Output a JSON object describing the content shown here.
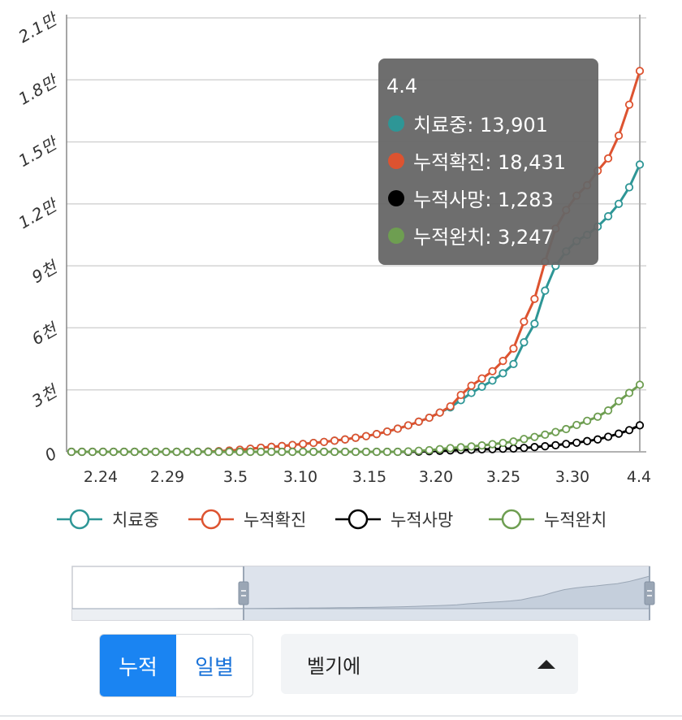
{
  "chart_data": {
    "type": "line",
    "x_tick_labels": [
      "2.24",
      "2.29",
      "3.5",
      "3.10",
      "3.15",
      "3.20",
      "3.25",
      "3.30",
      "4.4"
    ],
    "y_tick_labels": [
      "0",
      "3천",
      "6천",
      "9천",
      "1.2만",
      "1.5만",
      "1.8만",
      "2.1만"
    ],
    "ylim": [
      0,
      21000
    ],
    "grid": true,
    "legend_position": "bottom",
    "series": [
      {
        "name": "치료중",
        "color": "#2e9696",
        "values": [
          0,
          0,
          0,
          0,
          0,
          0,
          0,
          0,
          0,
          0,
          0,
          0,
          0,
          10,
          30,
          60,
          100,
          150,
          200,
          240,
          280,
          330,
          380,
          430,
          480,
          540,
          600,
          680,
          760,
          860,
          980,
          1120,
          1280,
          1460,
          1650,
          1900,
          2150,
          2500,
          2850,
          3150,
          3450,
          3800,
          4250,
          5300,
          6200,
          7800,
          9000,
          9700,
          10200,
          10500,
          10900,
          11400,
          12000,
          12800,
          13901
        ]
      },
      {
        "name": "누적확진",
        "color": "#dd5330",
        "values": [
          0,
          0,
          0,
          0,
          0,
          0,
          0,
          0,
          0,
          0,
          0,
          0,
          0,
          10,
          30,
          60,
          100,
          150,
          200,
          240,
          280,
          330,
          380,
          430,
          480,
          540,
          600,
          680,
          760,
          860,
          980,
          1120,
          1280,
          1460,
          1650,
          1900,
          2200,
          2750,
          3200,
          3550,
          3900,
          4400,
          5000,
          6300,
          7400,
          9200,
          10800,
          11700,
          12400,
          12900,
          13600,
          14200,
          15300,
          16800,
          18431
        ]
      },
      {
        "name": "누적사망",
        "color": "#000000",
        "values": [
          0,
          0,
          0,
          0,
          0,
          0,
          0,
          0,
          0,
          0,
          0,
          0,
          0,
          0,
          0,
          0,
          0,
          0,
          0,
          0,
          0,
          0,
          0,
          0,
          0,
          0,
          0,
          0,
          0,
          0,
          0,
          0,
          0,
          10,
          30,
          50,
          70,
          90,
          100,
          120,
          130,
          150,
          160,
          190,
          230,
          270,
          320,
          380,
          440,
          520,
          600,
          730,
          880,
          1050,
          1283
        ]
      },
      {
        "name": "누적완치",
        "color": "#6e9e51",
        "values": [
          0,
          0,
          0,
          0,
          0,
          0,
          0,
          0,
          0,
          0,
          0,
          0,
          0,
          0,
          0,
          0,
          0,
          0,
          0,
          0,
          0,
          0,
          0,
          0,
          0,
          0,
          0,
          0,
          0,
          0,
          0,
          0,
          20,
          50,
          80,
          130,
          180,
          220,
          260,
          310,
          370,
          430,
          500,
          620,
          720,
          830,
          960,
          1100,
          1300,
          1500,
          1700,
          2000,
          2450,
          2850,
          3247
        ]
      }
    ]
  },
  "tooltip": {
    "date": "4.4",
    "rows": [
      {
        "label": "치료중: 13,901",
        "color": "#2e9696"
      },
      {
        "label": "누적확진: 18,431",
        "color": "#dd5330"
      },
      {
        "label": "누적사망: 1,283",
        "color": "#000000"
      },
      {
        "label": "누적완치: 3,247",
        "color": "#6e9e51"
      }
    ]
  },
  "controls": {
    "cumulative_label": "누적",
    "daily_label": "일별",
    "region_label": "벨기에"
  }
}
